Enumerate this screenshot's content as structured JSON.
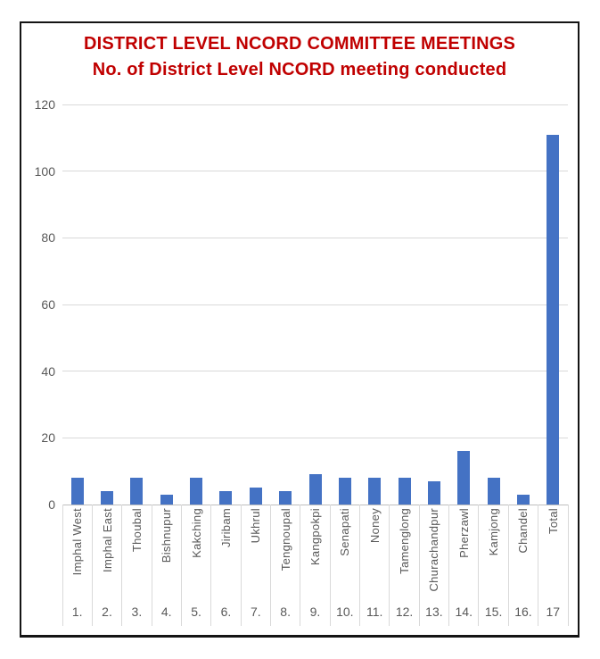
{
  "chart_data": {
    "type": "bar",
    "title": "DISTRICT LEVEL NCORD COMMITTEE MEETINGS",
    "subtitle": "No. of District Level NCORD meeting conducted",
    "categories": [
      "Imphal West",
      "Imphal East",
      "Thoubal",
      "Bishnupur",
      "Kakching",
      "Jiribam",
      "Ukhrul",
      "Tengnoupal",
      "Kangpokpi",
      "Senapati",
      "Noney",
      "Tamenglong",
      "Churachandpur",
      "Pherzawl",
      "Kamjong",
      "Chandel",
      "Total"
    ],
    "category_numbers": [
      "1.",
      "2.",
      "3.",
      "4.",
      "5.",
      "6.",
      "7.",
      "8.",
      "9.",
      "10.",
      "11.",
      "12.",
      "13.",
      "14.",
      "15.",
      "16.",
      "17"
    ],
    "values": [
      8,
      4,
      8,
      3,
      8,
      4,
      5,
      4,
      9,
      8,
      8,
      8,
      7,
      16,
      8,
      3,
      111
    ],
    "y_ticks": [
      0,
      20,
      40,
      60,
      80,
      100,
      120
    ],
    "ylim": [
      0,
      120
    ],
    "grid": true,
    "legend": "none",
    "colors": {
      "bar": "#4472C4",
      "title": "#C00000",
      "axis_text": "#595959",
      "gridline": "#D9D9D9",
      "axis_line": "#BFBFBF",
      "frame_border": "#141414"
    }
  }
}
